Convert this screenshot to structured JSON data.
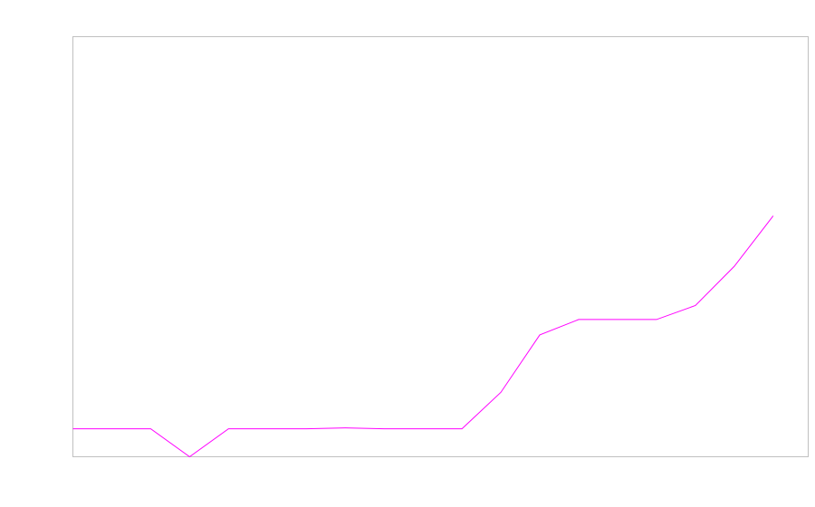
{
  "chart_data": {
    "type": "line",
    "title": "",
    "xlabel": "",
    "ylabel": "",
    "x": [
      0,
      1,
      2,
      3,
      4,
      5,
      6,
      7,
      8,
      9,
      10,
      11,
      12,
      13,
      14,
      15,
      16,
      17,
      18
    ],
    "series": [
      {
        "values": [
          1,
          1,
          1,
          0,
          1,
          1,
          1,
          1.03,
          1,
          1,
          1,
          2.3,
          4.35,
          4.9,
          4.9,
          4.9,
          5.4,
          6.8,
          8.6
        ],
        "color": "#ff00ff"
      }
    ],
    "xlim": [
      0,
      18.9
    ],
    "ylim": [
      0,
      15
    ],
    "grid": false,
    "tick_labels_shown": false,
    "frame_color": "#c0c0c0"
  }
}
